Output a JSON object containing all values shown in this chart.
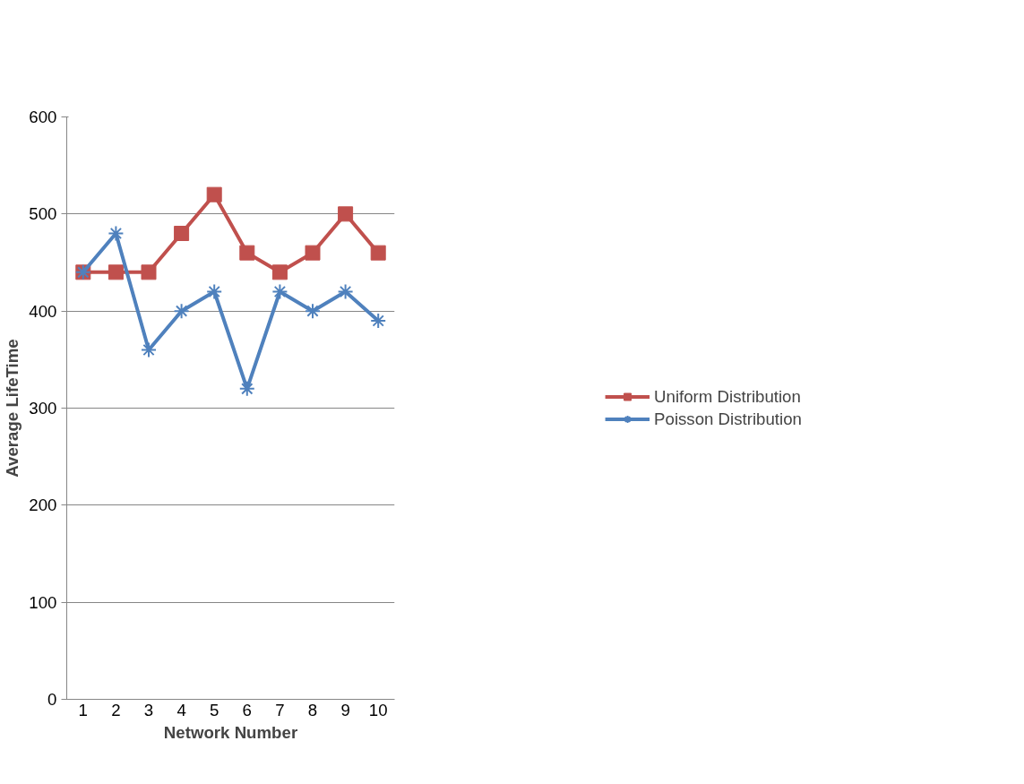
{
  "chart_data": {
    "type": "line",
    "xlabel": "Network Number",
    "ylabel": "Average LifeTime",
    "categories": [
      "1",
      "2",
      "3",
      "4",
      "5",
      "6",
      "7",
      "8",
      "9",
      "10"
    ],
    "series": [
      {
        "name": "Uniform Distribution",
        "color": "#c0504d",
        "marker": "square",
        "values": [
          440,
          440,
          440,
          480,
          520,
          460,
          440,
          460,
          500,
          460
        ]
      },
      {
        "name": "Poisson Distribution",
        "color": "#4f81bd",
        "marker": "cross",
        "values": [
          440,
          480,
          360,
          400,
          420,
          320,
          420,
          400,
          420,
          390
        ]
      }
    ],
    "ylim": [
      0,
      600
    ],
    "yticks": [
      0,
      100,
      200,
      300,
      400,
      500,
      600
    ],
    "grid": "y",
    "legend": "right",
    "line_style": "solid"
  }
}
